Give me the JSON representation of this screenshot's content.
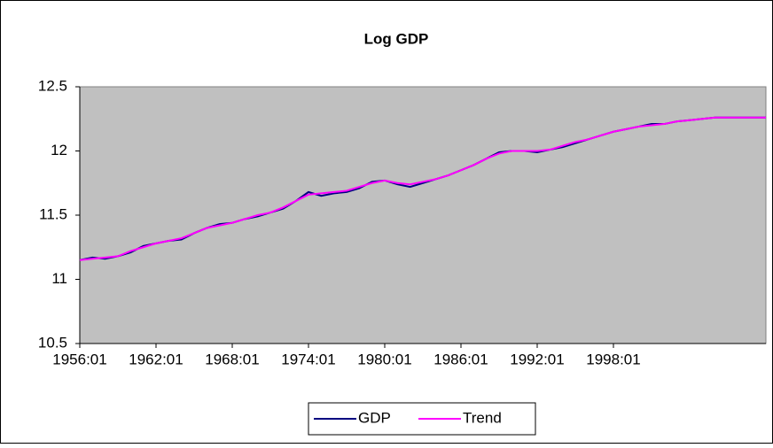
{
  "chart_data": {
    "type": "line",
    "title": "Log GDP",
    "categories": [
      "1956:01",
      null,
      null,
      null,
      null,
      null,
      "1962:01",
      null,
      null,
      null,
      null,
      null,
      "1968:01",
      null,
      null,
      null,
      null,
      null,
      "1974:01",
      null,
      null,
      null,
      null,
      null,
      "1980:01",
      null,
      null,
      null,
      null,
      null,
      "1986:01",
      null,
      null,
      null,
      null,
      null,
      "1992:01",
      null,
      null,
      null,
      null,
      null,
      "1998:01",
      null,
      null,
      null,
      null,
      null,
      null,
      null,
      null,
      null,
      null,
      null,
      null
    ],
    "series": [
      {
        "name": "GDP",
        "color": "#000080",
        "values": [
          11.15,
          11.17,
          11.16,
          11.18,
          11.21,
          11.26,
          11.28,
          11.3,
          11.31,
          11.36,
          11.4,
          11.43,
          11.44,
          11.47,
          11.49,
          11.52,
          11.55,
          11.61,
          11.68,
          11.65,
          11.67,
          11.68,
          11.71,
          11.76,
          11.77,
          11.74,
          11.72,
          11.75,
          11.78,
          11.81,
          11.85,
          11.89,
          11.94,
          11.99,
          12.0,
          12.0,
          11.99,
          12.01,
          12.03,
          12.06,
          12.09,
          12.12,
          12.15,
          12.17,
          12.19,
          12.21,
          12.21,
          12.23,
          12.24,
          12.25,
          12.26,
          12.26,
          12.26,
          12.26,
          12.26
        ]
      },
      {
        "name": "Trend",
        "color": "#ff00ff",
        "values": [
          11.15,
          11.16,
          11.17,
          11.18,
          11.22,
          11.25,
          11.28,
          11.3,
          11.32,
          11.36,
          11.4,
          11.42,
          11.44,
          11.47,
          11.5,
          11.52,
          11.56,
          11.61,
          11.66,
          11.67,
          11.68,
          11.69,
          11.72,
          11.75,
          11.77,
          11.75,
          11.74,
          11.76,
          11.78,
          11.81,
          11.85,
          11.89,
          11.94,
          11.98,
          12.0,
          12.0,
          12.0,
          12.01,
          12.04,
          12.07,
          12.09,
          12.12,
          12.15,
          12.17,
          12.19,
          12.2,
          12.21,
          12.23,
          12.24,
          12.25,
          12.26,
          12.26,
          12.26,
          12.26,
          12.26
        ]
      }
    ],
    "ylim": [
      10.5,
      12.5
    ],
    "yticks": [
      10.5,
      11,
      11.5,
      12,
      12.5
    ],
    "grid": false
  }
}
